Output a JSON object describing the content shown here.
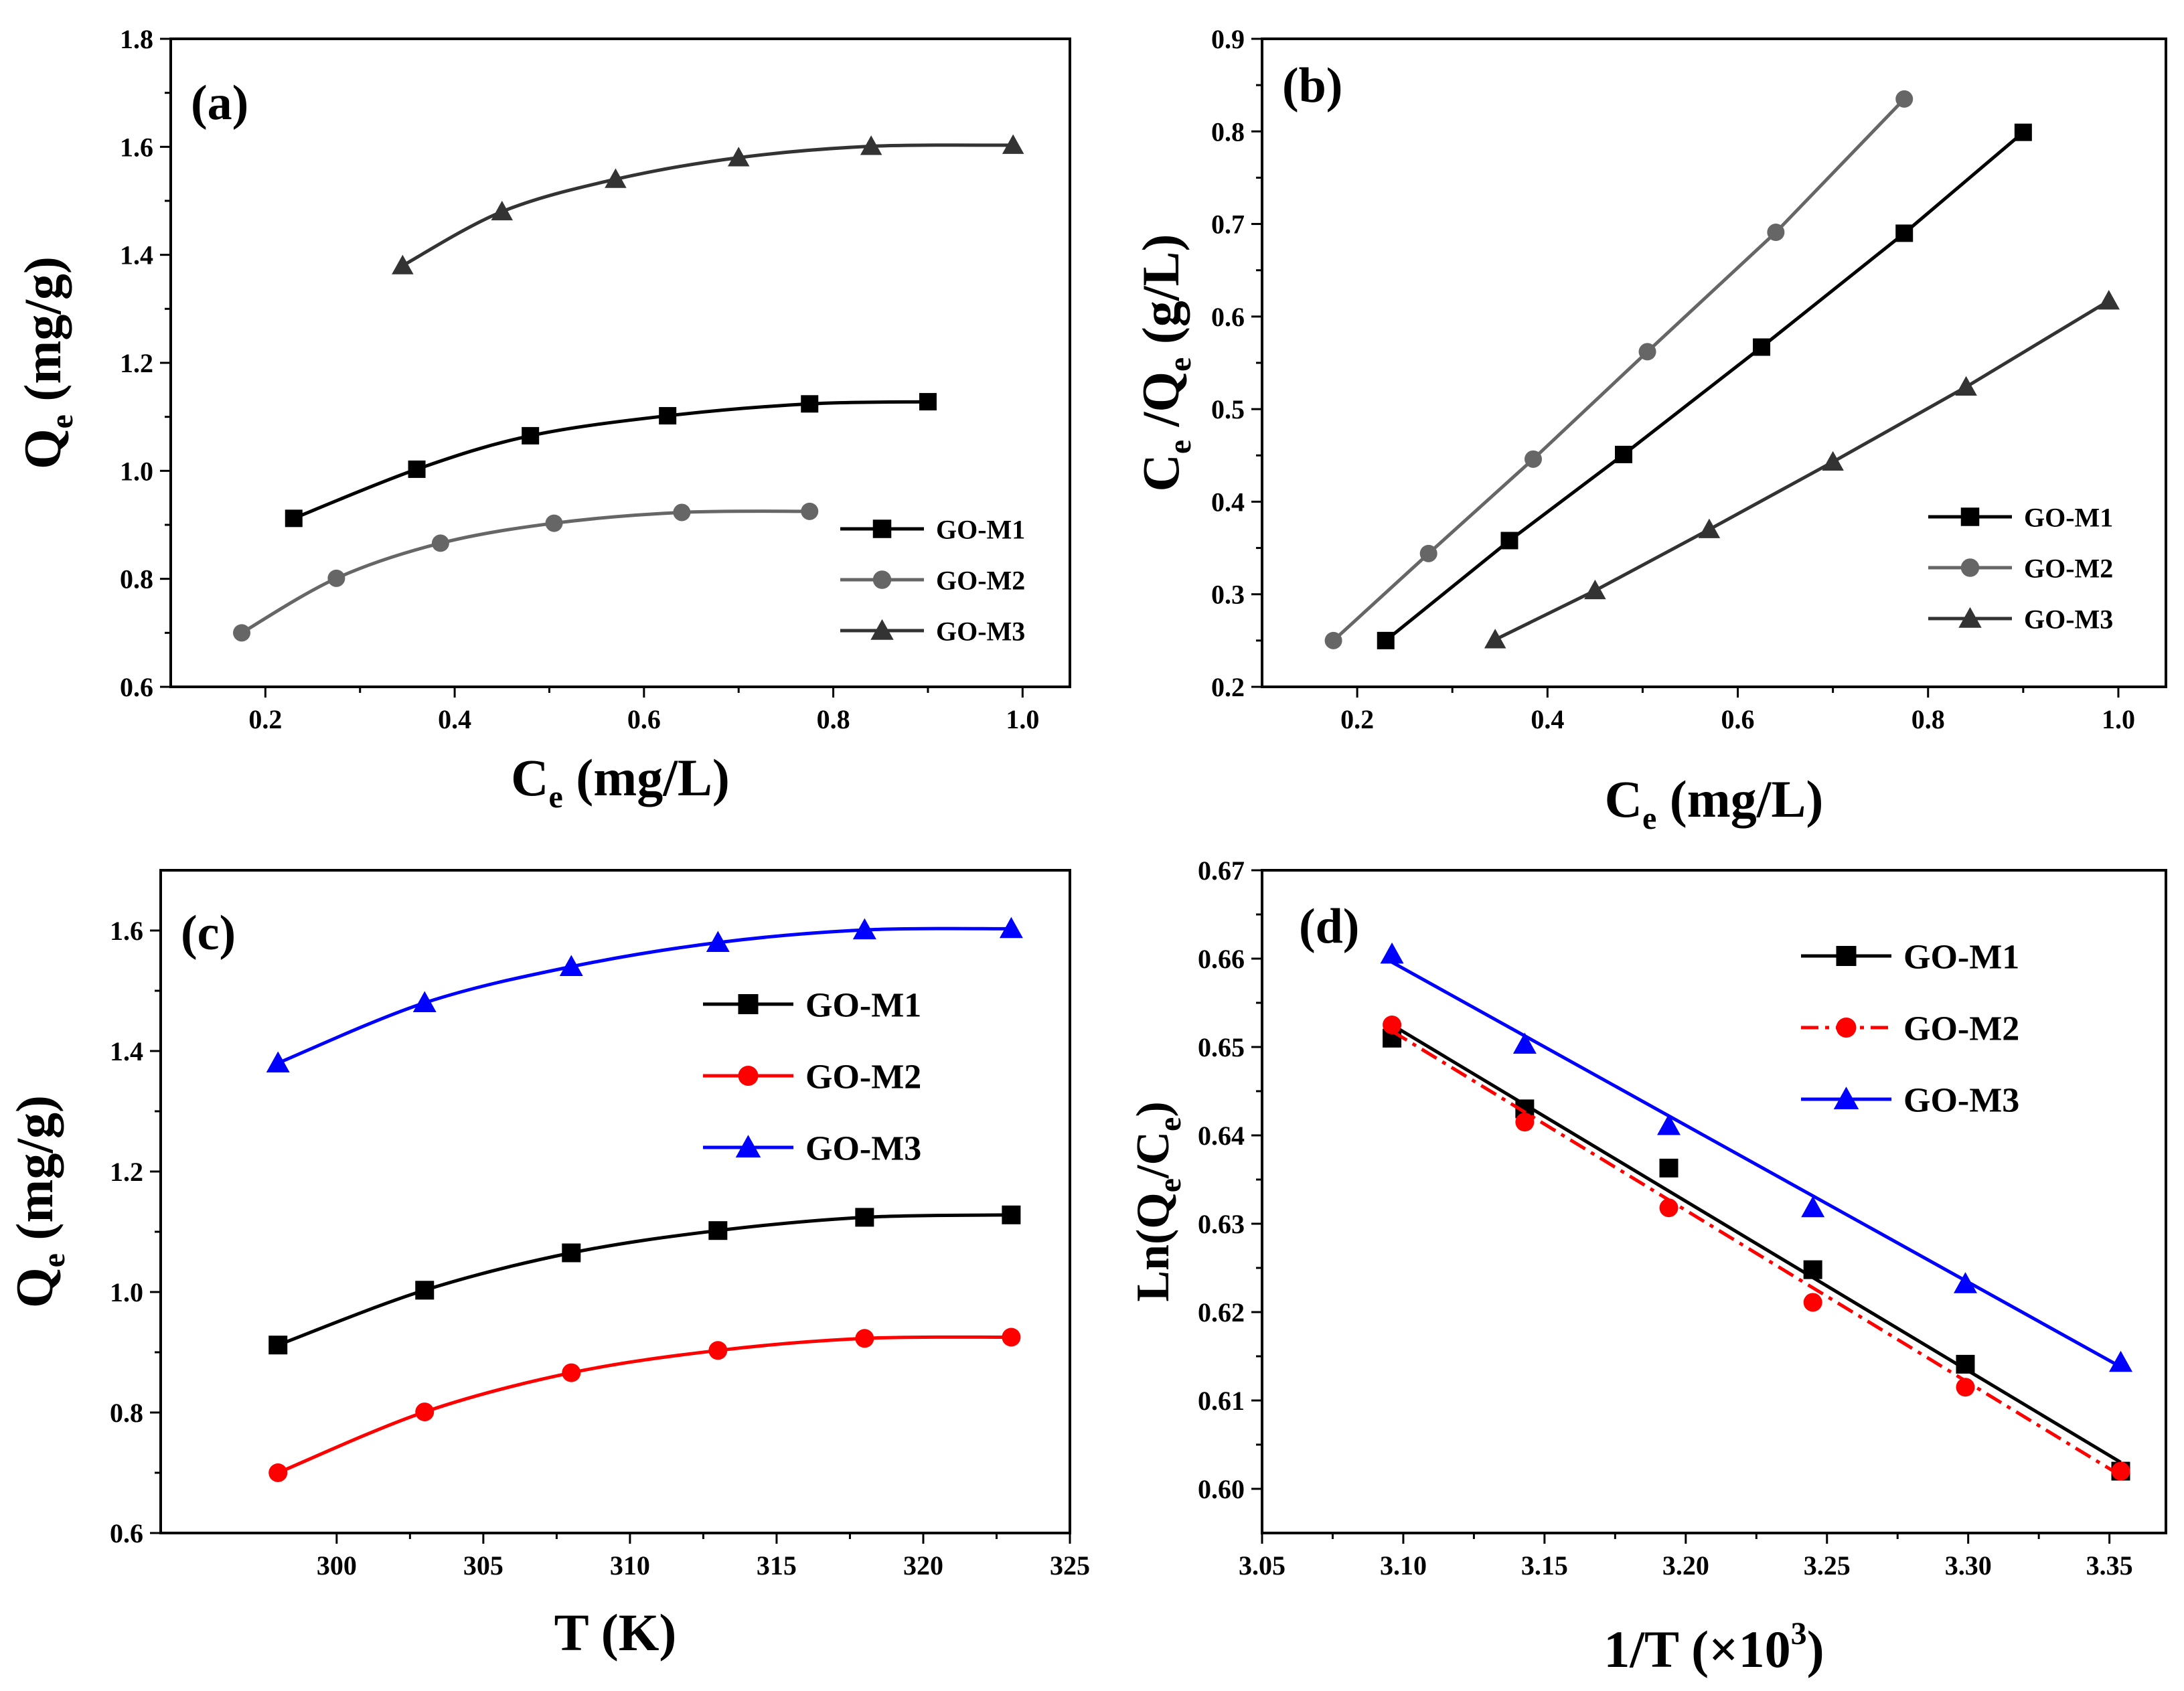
{
  "chart_data": [
    {
      "id": "a",
      "type": "line",
      "panel_label": "(a)",
      "xlabel": {
        "main": "C",
        "sub": "e",
        "rest": " (mg/L)"
      },
      "ylabel": {
        "main": "Q",
        "sub": "e",
        "rest": " (mg/g)"
      },
      "xlim": [
        0.1,
        1.05
      ],
      "ylim": [
        0.6,
        1.8
      ],
      "xticks": [
        "0.2",
        "0.4",
        "0.6",
        "0.8",
        "1.0"
      ],
      "yticks": [
        "0.6",
        "0.8",
        "1.0",
        "1.2",
        "1.4",
        "1.6",
        "1.8"
      ],
      "legend_position": "bottom-right",
      "series": [
        {
          "name": "GO-M1",
          "marker": "square",
          "color": "#000000",
          "x": [
            0.23,
            0.36,
            0.48,
            0.625,
            0.775,
            0.9
          ],
          "y": [
            0.912,
            1.003,
            1.065,
            1.102,
            1.124,
            1.128
          ]
        },
        {
          "name": "GO-M2",
          "marker": "circle",
          "color": "#666666",
          "x": [
            0.175,
            0.275,
            0.385,
            0.505,
            0.64,
            0.775
          ],
          "y": [
            0.7,
            0.801,
            0.866,
            0.903,
            0.923,
            0.925
          ]
        },
        {
          "name": "GO-M3",
          "marker": "triangle",
          "color": "#333333",
          "x": [
            0.345,
            0.45,
            0.57,
            0.7,
            0.84,
            0.99
          ],
          "y": [
            1.38,
            1.48,
            1.54,
            1.58,
            1.601,
            1.603
          ]
        }
      ]
    },
    {
      "id": "b",
      "type": "line",
      "panel_label": "(b)",
      "xlabel": {
        "main": "C",
        "sub": "e",
        "rest": " (mg/L)"
      },
      "ylabel": {
        "main": "C",
        "sub": "e",
        "mid": " /Q",
        "sub2": "e",
        "rest": " (g/L)"
      },
      "xlim": [
        0.1,
        1.05
      ],
      "ylim": [
        0.2,
        0.9
      ],
      "xticks": [
        "0.2",
        "0.4",
        "0.6",
        "0.8",
        "1.0"
      ],
      "yticks": [
        "0.2",
        "0.3",
        "0.4",
        "0.5",
        "0.6",
        "0.7",
        "0.8",
        "0.9"
      ],
      "legend_position": "bottom-right",
      "series": [
        {
          "name": "GO-M1",
          "marker": "square",
          "color": "#000000",
          "x": [
            0.23,
            0.36,
            0.48,
            0.625,
            0.775,
            0.9
          ],
          "y": [
            0.25,
            0.358,
            0.451,
            0.567,
            0.69,
            0.799
          ]
        },
        {
          "name": "GO-M2",
          "marker": "circle",
          "color": "#666666",
          "x": [
            0.175,
            0.275,
            0.385,
            0.505,
            0.64,
            0.775
          ],
          "y": [
            0.25,
            0.344,
            0.446,
            0.562,
            0.691,
            0.835
          ]
        },
        {
          "name": "GO-M3",
          "marker": "triangle",
          "color": "#333333",
          "x": [
            0.345,
            0.45,
            0.57,
            0.7,
            0.84,
            0.99
          ],
          "y": [
            0.251,
            0.304,
            0.37,
            0.443,
            0.524,
            0.617
          ]
        }
      ]
    },
    {
      "id": "c",
      "type": "line",
      "panel_label": "(c)",
      "xlabel": {
        "main": "T (K)"
      },
      "ylabel": {
        "main": "Q",
        "sub": "e",
        "rest": " (mg/g)"
      },
      "xlim": [
        294,
        325
      ],
      "ylim": [
        0.6,
        1.7
      ],
      "xticks": [
        "300",
        "305",
        "310",
        "315",
        "320",
        "325"
      ],
      "yticks": [
        "0.6",
        "0.8",
        "1.0",
        "1.2",
        "1.4",
        "1.6"
      ],
      "legend_position": "top-right",
      "series": [
        {
          "name": "GO-M1",
          "marker": "square",
          "color": "#000000",
          "x": [
            298,
            303,
            308,
            313,
            318,
            323
          ],
          "y": [
            0.912,
            1.003,
            1.065,
            1.102,
            1.124,
            1.128
          ]
        },
        {
          "name": "GO-M2",
          "marker": "circle",
          "color": "#ff0000",
          "x": [
            298,
            303,
            308,
            313,
            318,
            323
          ],
          "y": [
            0.7,
            0.801,
            0.866,
            0.903,
            0.923,
            0.925
          ]
        },
        {
          "name": "GO-M3",
          "marker": "triangle",
          "color": "#0000ff",
          "x": [
            298,
            303,
            308,
            313,
            318,
            323
          ],
          "y": [
            1.38,
            1.48,
            1.54,
            1.58,
            1.601,
            1.603
          ]
        }
      ]
    },
    {
      "id": "d",
      "type": "scatter",
      "panel_label": "(d)",
      "xlabel": {
        "main": "1/T (×10",
        "sup": "3",
        "rest": ")"
      },
      "ylabel": {
        "main": "Ln(Q",
        "sub": "e",
        "mid": "/C",
        "sub2": "e",
        "rest": ")"
      },
      "xlim": [
        3.05,
        3.37
      ],
      "ylim": [
        0.595,
        0.67
      ],
      "xticks": [
        "3.05",
        "3.10",
        "3.15",
        "3.20",
        "3.25",
        "3.30",
        "3.35"
      ],
      "yticks": [
        "0.60",
        "0.61",
        "0.62",
        "0.63",
        "0.64",
        "0.65",
        "0.66",
        "0.67"
      ],
      "legend_position": "top-right",
      "series": [
        {
          "name": "GO-M1",
          "marker": "square",
          "color": "#000000",
          "dash": false,
          "x": [
            3.096,
            3.143,
            3.194,
            3.245,
            3.299,
            3.354
          ],
          "y": [
            0.651,
            0.643,
            0.6363,
            0.6248,
            0.6141,
            0.602
          ],
          "fit": [
            [
              3.096,
              0.6525
            ],
            [
              3.354,
              0.603
            ]
          ]
        },
        {
          "name": "GO-M2",
          "marker": "circle",
          "color": "#ff0000",
          "dash": true,
          "x": [
            3.096,
            3.143,
            3.194,
            3.245,
            3.299,
            3.354
          ],
          "y": [
            0.6525,
            0.6415,
            0.6318,
            0.6211,
            0.6115,
            0.602
          ],
          "fit": [
            [
              3.096,
              0.6518
            ],
            [
              3.354,
              0.6015
            ]
          ]
        },
        {
          "name": "GO-M3",
          "marker": "triangle",
          "color": "#0000ff",
          "dash": false,
          "x": [
            3.096,
            3.143,
            3.194,
            3.245,
            3.299,
            3.354
          ],
          "y": [
            0.6605,
            0.6503,
            0.6411,
            0.6318,
            0.6232,
            0.6143
          ],
          "fit": [
            [
              3.096,
              0.6596
            ],
            [
              3.354,
              0.6138
            ]
          ]
        }
      ]
    }
  ]
}
